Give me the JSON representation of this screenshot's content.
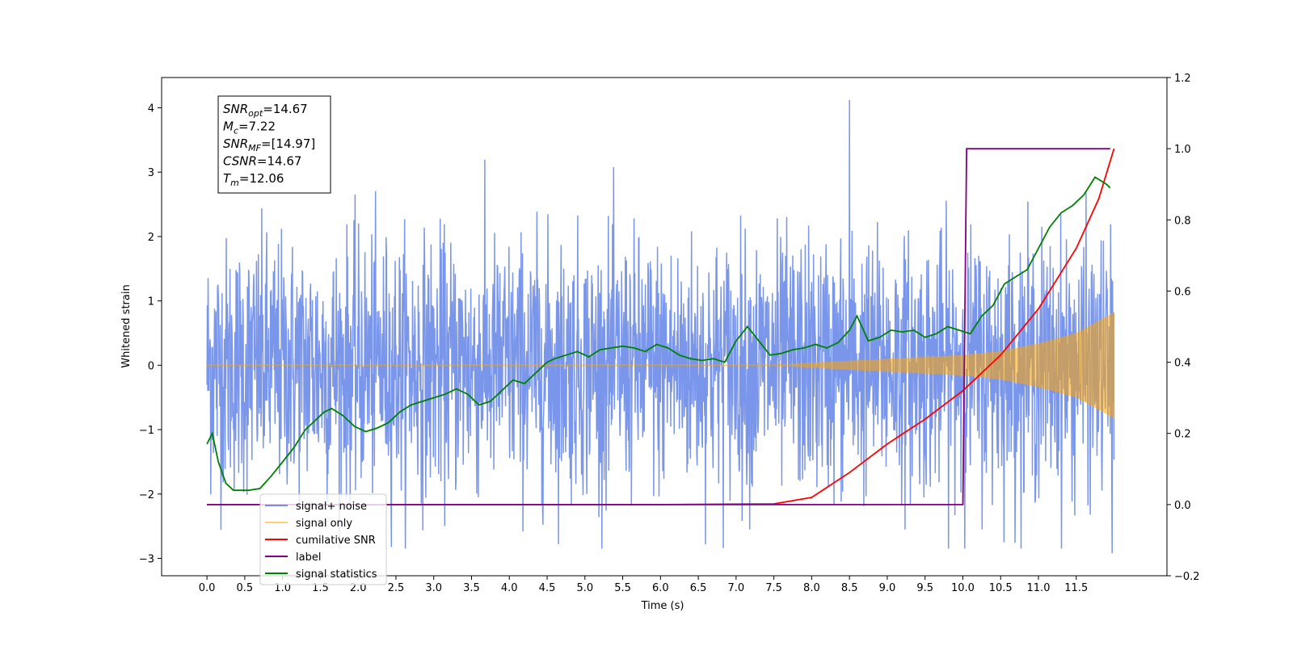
{
  "chart_data": {
    "type": "line",
    "xlabel": "Time (s)",
    "ylabel": "Whitened strain",
    "xlim": [
      -0.6,
      12.7
    ],
    "ylim_left": [
      -3.27,
      4.47
    ],
    "ylim_right": [
      -0.2,
      1.2
    ],
    "x_ticks": [
      0.0,
      0.5,
      1.0,
      1.5,
      2.0,
      2.5,
      3.0,
      3.5,
      4.0,
      4.5,
      5.0,
      5.5,
      6.0,
      6.5,
      7.0,
      7.5,
      8.0,
      8.5,
      9.0,
      9.5,
      10.0,
      10.5,
      11.0,
      11.5
    ],
    "x_tick_labels": [
      "0.0",
      "0.5",
      "1.0",
      "1.5",
      "2.0",
      "2.5",
      "3.0",
      "3.5",
      "4.0",
      "4.5",
      "5.0",
      "5.5",
      "6.0",
      "6.5",
      "7.0",
      "7.5",
      "8.0",
      "8.5",
      "9.0",
      "9.5",
      "10.0",
      "10.5",
      "11.0",
      "11.5"
    ],
    "y_left_ticks": [
      -3,
      -2,
      -1,
      0,
      1,
      2,
      3,
      4
    ],
    "y_left_tick_labels": [
      "−3",
      "−2",
      "−1",
      "0",
      "1",
      "2",
      "3",
      "4"
    ],
    "y_right_ticks": [
      -0.2,
      0.0,
      0.2,
      0.4,
      0.6,
      0.8,
      1.0,
      1.2
    ],
    "y_right_tick_labels": [
      "−0.2",
      "0.0",
      "0.2",
      "0.4",
      "0.6",
      "0.8",
      "1.0",
      "1.2"
    ],
    "grid": false,
    "legend_position": "lower-left",
    "annotation": {
      "lines": [
        {
          "main": "SNR",
          "sub": "opt",
          "value": "=14.67"
        },
        {
          "main": "M",
          "sub": "c",
          "value": "=7.22"
        },
        {
          "main": "SNR",
          "sub": "MF",
          "value": "=[14.97]"
        },
        {
          "main": "CSNR",
          "sub": "",
          "value": "=14.67"
        },
        {
          "main": "T",
          "sub": "m",
          "value": "=12.06"
        }
      ]
    },
    "series": [
      {
        "name": "signal+ noise",
        "axis": "left",
        "color": "#4169e1",
        "kind": "noise",
        "x_range": [
          0.0,
          12.0
        ],
        "typical_amplitude": 1.3,
        "peak_max": 4.12,
        "peak_min": -2.92,
        "opacity": 0.7
      },
      {
        "name": "signal only",
        "axis": "left",
        "color": "#ffa500",
        "kind": "chirp",
        "x_range": [
          0.0,
          12.0
        ],
        "envelope_x": [
          0.0,
          7.5,
          8.0,
          9.0,
          10.0,
          10.5,
          11.0,
          11.5,
          12.0
        ],
        "envelope_y": [
          0.0,
          0.0,
          0.04,
          0.1,
          0.16,
          0.22,
          0.34,
          0.5,
          0.82
        ],
        "opacity": 0.55
      },
      {
        "name": "cumilative SNR",
        "axis": "right",
        "color": "#ff0000",
        "x": [
          0.0,
          2.0,
          4.0,
          6.0,
          7.5,
          8.0,
          8.5,
          9.0,
          9.5,
          10.0,
          10.5,
          11.0,
          11.5,
          11.8,
          12.0
        ],
        "y": [
          0.0,
          0.0,
          0.0,
          0.0,
          0.002,
          0.02,
          0.09,
          0.17,
          0.24,
          0.32,
          0.42,
          0.55,
          0.72,
          0.86,
          1.0
        ]
      },
      {
        "name": "label",
        "axis": "right",
        "color": "#800080",
        "x": [
          0.0,
          10.0,
          10.05,
          11.95
        ],
        "y": [
          0.0,
          0.0,
          1.0,
          1.0
        ]
      },
      {
        "name": "signal statistics",
        "axis": "right",
        "color": "#008000",
        "x": [
          0.0,
          0.07,
          0.15,
          0.25,
          0.35,
          0.45,
          0.55,
          0.7,
          0.85,
          1.0,
          1.15,
          1.3,
          1.45,
          1.55,
          1.65,
          1.8,
          1.95,
          2.1,
          2.25,
          2.4,
          2.55,
          2.7,
          2.85,
          3.0,
          3.15,
          3.3,
          3.45,
          3.6,
          3.75,
          3.9,
          4.05,
          4.2,
          4.35,
          4.5,
          4.6,
          4.75,
          4.9,
          5.05,
          5.2,
          5.35,
          5.5,
          5.65,
          5.8,
          5.95,
          6.1,
          6.25,
          6.4,
          6.55,
          6.7,
          6.85,
          7.0,
          7.15,
          7.3,
          7.45,
          7.6,
          7.75,
          7.9,
          8.05,
          8.2,
          8.35,
          8.5,
          8.6,
          8.75,
          8.9,
          9.05,
          9.2,
          9.35,
          9.5,
          9.65,
          9.8,
          9.95,
          10.1,
          10.25,
          10.4,
          10.55,
          10.7,
          10.85,
          11.0,
          11.15,
          11.3,
          11.45,
          11.6,
          11.75,
          11.9,
          11.95
        ],
        "y": [
          0.17,
          0.2,
          0.12,
          0.06,
          0.04,
          0.04,
          0.04,
          0.045,
          0.08,
          0.12,
          0.16,
          0.21,
          0.24,
          0.26,
          0.27,
          0.25,
          0.22,
          0.205,
          0.215,
          0.23,
          0.26,
          0.28,
          0.29,
          0.3,
          0.31,
          0.325,
          0.31,
          0.28,
          0.29,
          0.32,
          0.35,
          0.34,
          0.37,
          0.4,
          0.41,
          0.42,
          0.43,
          0.415,
          0.435,
          0.44,
          0.445,
          0.44,
          0.43,
          0.45,
          0.44,
          0.42,
          0.41,
          0.405,
          0.41,
          0.4,
          0.46,
          0.5,
          0.46,
          0.42,
          0.425,
          0.435,
          0.44,
          0.45,
          0.44,
          0.455,
          0.49,
          0.53,
          0.46,
          0.47,
          0.49,
          0.485,
          0.49,
          0.47,
          0.48,
          0.5,
          0.49,
          0.48,
          0.53,
          0.56,
          0.62,
          0.64,
          0.66,
          0.72,
          0.78,
          0.82,
          0.84,
          0.87,
          0.92,
          0.9,
          0.89
        ]
      }
    ]
  }
}
